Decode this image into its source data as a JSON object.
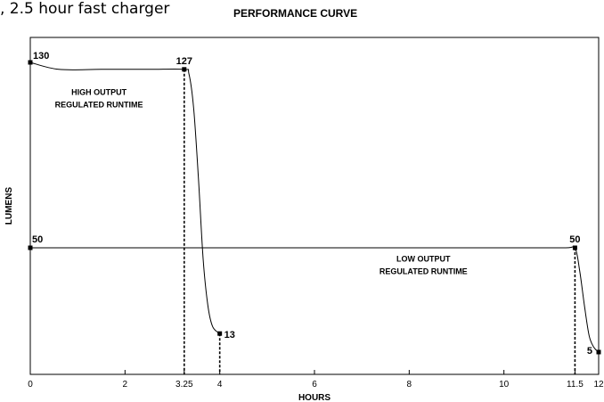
{
  "caption": ", 2.5 hour fast charger",
  "chart_data": {
    "type": "line",
    "title": "PERFORMANCE CURVE",
    "xlabel": "HOURS",
    "ylabel": "LUMENS",
    "xlim": [
      0,
      12
    ],
    "ylim": [
      0,
      130
    ],
    "x_ticks": [
      0,
      2,
      3.25,
      4,
      6,
      8,
      10,
      11.5,
      12
    ],
    "x_tick_labels": [
      "0",
      "2",
      "3.25",
      "4",
      "6",
      "8",
      "10",
      "11.5",
      "12"
    ],
    "grid": false,
    "series": [
      {
        "style": "solid",
        "x": [
          0,
          0.6,
          1.5,
          2.5,
          3.25,
          3.35,
          3.45,
          3.55,
          3.65,
          3.75,
          3.85,
          4
        ],
        "y": [
          130,
          127,
          127,
          127,
          127,
          125,
          110,
          80,
          45,
          25,
          16,
          13
        ]
      },
      {
        "style": "solid",
        "x": [
          0,
          2,
          4,
          6,
          8,
          10,
          11.3,
          11.5,
          11.6,
          11.7,
          11.8,
          11.9,
          12
        ],
        "y": [
          50,
          50,
          50,
          50,
          50,
          50,
          50,
          50,
          40,
          25,
          12,
          7,
          5
        ]
      }
    ],
    "markers": [
      {
        "x": 0,
        "y": 130,
        "label": "130"
      },
      {
        "x": 3.25,
        "y": 127,
        "label": "127"
      },
      {
        "x": 4,
        "y": 13,
        "label": "13"
      },
      {
        "x": 0,
        "y": 50,
        "label": "50"
      },
      {
        "x": 11.5,
        "y": 50,
        "label": "50"
      },
      {
        "x": 12,
        "y": 5,
        "label": "5"
      }
    ],
    "dropdown_lines": [
      {
        "x": 3.25,
        "y": 127
      },
      {
        "x": 4,
        "y": 13
      },
      {
        "x": 11.5,
        "y": 50
      }
    ],
    "annotations": [
      {
        "lines": [
          "HIGH OUTPUT",
          "REGULATED RUNTIME"
        ],
        "x": 1.45,
        "y": 116
      },
      {
        "lines": [
          "LOW OUTPUT",
          "REGULATED RUNTIME"
        ],
        "x": 8.3,
        "y": 44
      }
    ]
  }
}
